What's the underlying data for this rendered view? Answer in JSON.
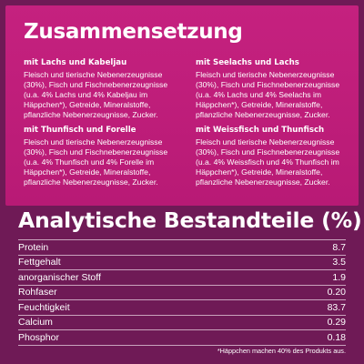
{
  "composition": {
    "title": "Zusammensetzung",
    "varieties": [
      {
        "name": "mit Lachs und Kabeljau",
        "description": "Fleisch und tierische Nebenerzeugnisse (30%), Fisch und Fischnebenerzeugnisse (u.a. 4% Lachs und 4% Kabeljau im Häppchen*), Getreide, Mineralstoffe, pflanzliche Nebenerzeugnisse, Zucker."
      },
      {
        "name": "mit Seelachs und Lachs",
        "description": "Fleisch und tierische Nebenerzeugnisse (30%), Fisch und Fischnebenerzeugnisse (u.a. 4% Lachs und 4% Seelachs im Häppchen*), Getreide, Mineralstoffe, pflanzliche Nebenerzeugnisse, Zucker."
      },
      {
        "name": "mit Thunfisch und Forelle",
        "description": "Fleisch und tierische Nebenerzeugnisse (30%), Fisch und Fischnebenerzeugnisse (u.a. 4% Thunfisch und 4% Forelle im Häppchen*), Getreide, Mineralstoffe, pflanzliche Nebenerzeugnisse, Zucker."
      },
      {
        "name": "mit Weissfisch und Thunfisch",
        "description": "Fleisch und tierische Nebenerzeugnisse (30%), Fisch und Fischnebenerzeugnisse (u.a. 4% Weissfisch und 4% Thunfisch im Häppchen*), Getreide, Mineralstoffe, pflanzliche Nebenerzeugnisse, Zucker."
      }
    ]
  },
  "analysis": {
    "title": "Analytische Bestandteile (%)",
    "rows": [
      {
        "label": "Protein",
        "value": "8.7"
      },
      {
        "label": "Fettgehalt",
        "value": "3.5"
      },
      {
        "label": "anorganischer Stoff",
        "value": "1.9"
      },
      {
        "label": "Rohfaser",
        "value": "0.20"
      },
      {
        "label": "Feuchtigkeit",
        "value": "83.7"
      },
      {
        "label": "Calcium",
        "value": "0.29"
      },
      {
        "label": "Phosphor",
        "value": "0.18"
      }
    ]
  },
  "footnote": "*Häppchen machen 40% des Produkts aus.",
  "colors": {
    "background": "#6f1a56",
    "panel": "#c01e7b",
    "text": "#ffffff"
  }
}
